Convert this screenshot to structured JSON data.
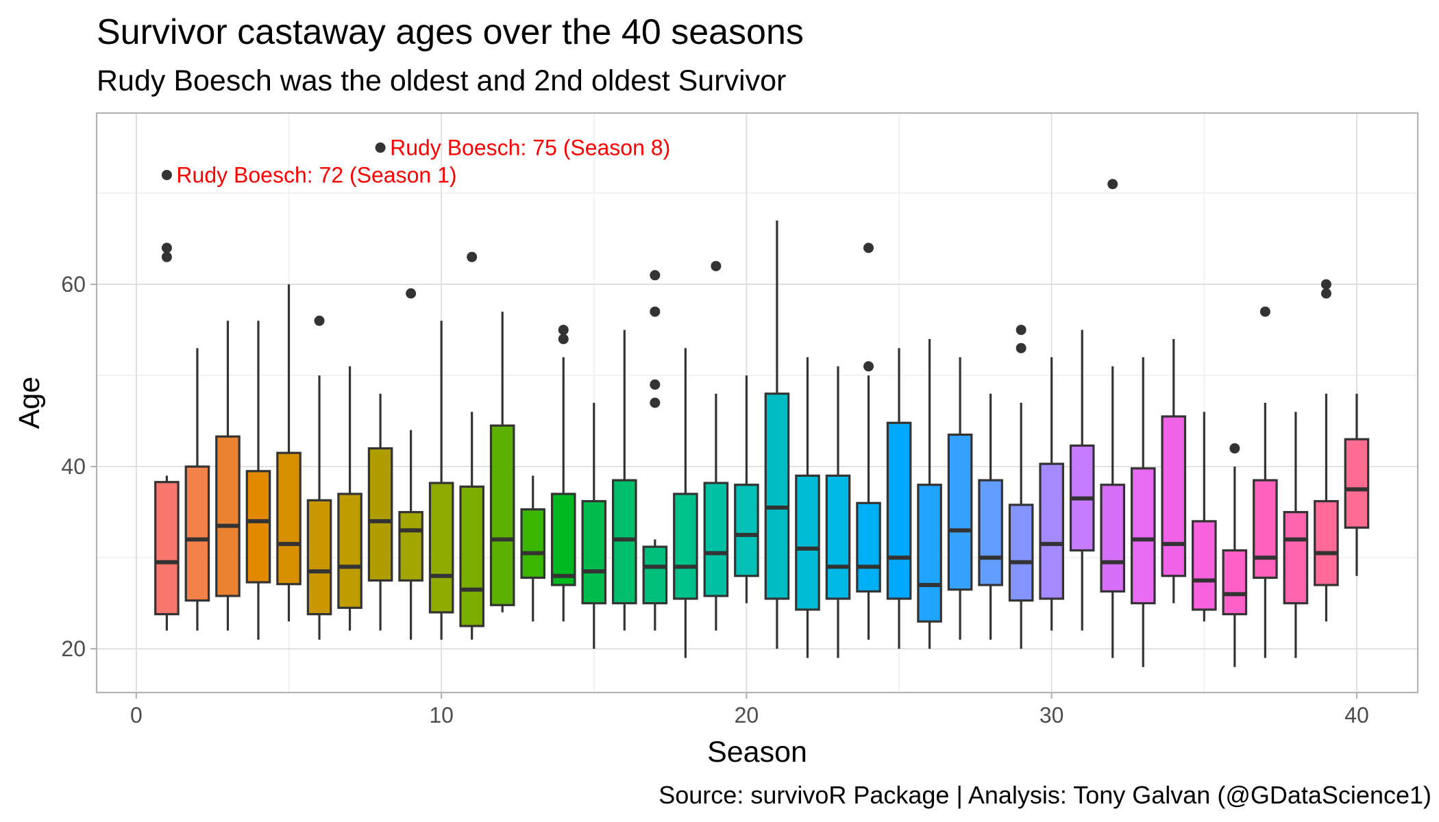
{
  "header": {
    "title": "Survivor castaway ages over the 40 seasons",
    "subtitle": "Rudy Boesch was the oldest and 2nd oldest Survivor"
  },
  "caption": "Source: survivoR Package  |  Analysis: Tony Galvan (@GDataScience1)",
  "chart_data": {
    "type": "boxplot",
    "xlabel": "Season",
    "ylabel": "Age",
    "xlim": [
      -1.3,
      42.0
    ],
    "ylim": [
      15.2,
      78.8
    ],
    "x_ticks": [
      0,
      10,
      20,
      30,
      40
    ],
    "y_ticks": [
      20,
      40,
      60
    ],
    "x_tick_labels": [
      "0",
      "10",
      "20",
      "30",
      "40"
    ],
    "y_tick_labels": [
      "20",
      "40",
      "60"
    ],
    "grid": true,
    "legend": "none",
    "colors": {
      "panel_border": "#b3b3b3",
      "grid_major": "#dddddd",
      "grid_minor": "#efefef",
      "box_line": "#333333",
      "annotation": "#ff0000"
    },
    "series": [
      {
        "season": 1,
        "min": 22,
        "q1": 23.8,
        "median": 29.5,
        "q3": 38.3,
        "max": 39,
        "outliers": [
          63,
          64,
          72
        ],
        "color": "#F8766D"
      },
      {
        "season": 2,
        "min": 22,
        "q1": 25.3,
        "median": 32,
        "q3": 40,
        "max": 53,
        "outliers": [],
        "color": "#F2814A"
      },
      {
        "season": 3,
        "min": 22,
        "q1": 25.8,
        "median": 33.5,
        "q3": 43.3,
        "max": 56,
        "outliers": [],
        "color": "#EA8331"
      },
      {
        "season": 4,
        "min": 21,
        "q1": 27.3,
        "median": 34,
        "q3": 39.5,
        "max": 56,
        "outliers": [],
        "color": "#E38900"
      },
      {
        "season": 5,
        "min": 23,
        "q1": 27.1,
        "median": 31.5,
        "q3": 41.5,
        "max": 60,
        "outliers": [],
        "color": "#D89000"
      },
      {
        "season": 6,
        "min": 21,
        "q1": 23.8,
        "median": 28.5,
        "q3": 36.3,
        "max": 50,
        "outliers": [
          56
        ],
        "color": "#CB9700"
      },
      {
        "season": 7,
        "min": 22,
        "q1": 24.5,
        "median": 29,
        "q3": 37,
        "max": 51,
        "outliers": [],
        "color": "#BF9C00"
      },
      {
        "season": 8,
        "min": 22,
        "q1": 27.5,
        "median": 34,
        "q3": 42,
        "max": 48,
        "outliers": [
          75
        ],
        "color": "#B09E00"
      },
      {
        "season": 9,
        "min": 21,
        "q1": 27.5,
        "median": 33,
        "q3": 35,
        "max": 44,
        "outliers": [
          59
        ],
        "color": "#A3A500"
      },
      {
        "season": 10,
        "min": 21,
        "q1": 24,
        "median": 28,
        "q3": 38.2,
        "max": 56,
        "outliers": [],
        "color": "#8FAA00"
      },
      {
        "season": 11,
        "min": 21,
        "q1": 22.5,
        "median": 26.5,
        "q3": 37.8,
        "max": 46,
        "outliers": [
          63
        ],
        "color": "#7CAE00"
      },
      {
        "season": 12,
        "min": 24,
        "q1": 24.8,
        "median": 32,
        "q3": 44.5,
        "max": 57,
        "outliers": [],
        "color": "#5DB100"
      },
      {
        "season": 13,
        "min": 23,
        "q1": 27.8,
        "median": 30.5,
        "q3": 35.3,
        "max": 39,
        "outliers": [],
        "color": "#39B600"
      },
      {
        "season": 14,
        "min": 23,
        "q1": 27,
        "median": 28,
        "q3": 37,
        "max": 52,
        "outliers": [
          54,
          55
        ],
        "color": "#00B81F"
      },
      {
        "season": 15,
        "min": 20,
        "q1": 25,
        "median": 28.5,
        "q3": 36.2,
        "max": 47,
        "outliers": [],
        "color": "#00BB4E"
      },
      {
        "season": 16,
        "min": 22,
        "q1": 25,
        "median": 32,
        "q3": 38.5,
        "max": 55,
        "outliers": [],
        "color": "#00BE6C"
      },
      {
        "season": 17,
        "min": 22,
        "q1": 25,
        "median": 29,
        "q3": 31.2,
        "max": 32,
        "outliers": [
          47,
          49,
          57,
          61
        ],
        "color": "#00BF7D"
      },
      {
        "season": 18,
        "min": 19,
        "q1": 25.5,
        "median": 29,
        "q3": 37,
        "max": 53,
        "outliers": [],
        "color": "#00C08B"
      },
      {
        "season": 19,
        "min": 22,
        "q1": 25.8,
        "median": 30.5,
        "q3": 38.2,
        "max": 48,
        "outliers": [
          62
        ],
        "color": "#00C1A3"
      },
      {
        "season": 20,
        "min": 25,
        "q1": 28,
        "median": 32.5,
        "q3": 38,
        "max": 50,
        "outliers": [],
        "color": "#00C0B7"
      },
      {
        "season": 21,
        "min": 20,
        "q1": 25.5,
        "median": 35.5,
        "q3": 48,
        "max": 67,
        "outliers": [],
        "color": "#00BDC4"
      },
      {
        "season": 22,
        "min": 19,
        "q1": 24.3,
        "median": 31,
        "q3": 39,
        "max": 52,
        "outliers": [],
        "color": "#00BBD4"
      },
      {
        "season": 23,
        "min": 19,
        "q1": 25.5,
        "median": 29,
        "q3": 39,
        "max": 51,
        "outliers": [],
        "color": "#00B8E5"
      },
      {
        "season": 24,
        "min": 21,
        "q1": 26.3,
        "median": 29,
        "q3": 36,
        "max": 50,
        "outliers": [
          51,
          64
        ],
        "color": "#00B0F6"
      },
      {
        "season": 25,
        "min": 20,
        "q1": 25.5,
        "median": 30,
        "q3": 44.8,
        "max": 53,
        "outliers": [],
        "color": "#00A9FF"
      },
      {
        "season": 26,
        "min": 20,
        "q1": 23,
        "median": 27,
        "q3": 38,
        "max": 54,
        "outliers": [],
        "color": "#1FA5FF"
      },
      {
        "season": 27,
        "min": 21,
        "q1": 26.5,
        "median": 33,
        "q3": 43.5,
        "max": 52,
        "outliers": [],
        "color": "#35A2FF"
      },
      {
        "season": 28,
        "min": 21,
        "q1": 27,
        "median": 30,
        "q3": 38.5,
        "max": 48,
        "outliers": [],
        "color": "#619CFF"
      },
      {
        "season": 29,
        "min": 20,
        "q1": 25.3,
        "median": 29.5,
        "q3": 35.8,
        "max": 47,
        "outliers": [
          53,
          55
        ],
        "color": "#8494FF"
      },
      {
        "season": 30,
        "min": 22,
        "q1": 25.5,
        "median": 31.5,
        "q3": 40.3,
        "max": 52,
        "outliers": [],
        "color": "#A58AFF"
      },
      {
        "season": 31,
        "min": 22,
        "q1": 30.8,
        "median": 36.5,
        "q3": 42.3,
        "max": 55,
        "outliers": [],
        "color": "#C77CFF"
      },
      {
        "season": 32,
        "min": 19,
        "q1": 26.3,
        "median": 29.5,
        "q3": 38,
        "max": 51,
        "outliers": [
          71
        ],
        "color": "#D870F7"
      },
      {
        "season": 33,
        "min": 18,
        "q1": 25,
        "median": 32,
        "q3": 39.8,
        "max": 52,
        "outliers": [],
        "color": "#E76BF3"
      },
      {
        "season": 34,
        "min": 25,
        "q1": 28,
        "median": 31.5,
        "q3": 45.5,
        "max": 54,
        "outliers": [],
        "color": "#F063E7"
      },
      {
        "season": 35,
        "min": 23,
        "q1": 24.3,
        "median": 27.5,
        "q3": 34,
        "max": 46,
        "outliers": [],
        "color": "#F962DD"
      },
      {
        "season": 36,
        "min": 18,
        "q1": 23.8,
        "median": 26,
        "q3": 30.8,
        "max": 40,
        "outliers": [
          42
        ],
        "color": "#FF61C9"
      },
      {
        "season": 37,
        "min": 19,
        "q1": 27.8,
        "median": 30,
        "q3": 38.5,
        "max": 47,
        "outliers": [
          57
        ],
        "color": "#FF62BC"
      },
      {
        "season": 38,
        "min": 19,
        "q1": 25,
        "median": 32,
        "q3": 35,
        "max": 46,
        "outliers": [],
        "color": "#FF65AE"
      },
      {
        "season": 39,
        "min": 23,
        "q1": 27,
        "median": 30.5,
        "q3": 36.2,
        "max": 48,
        "outliers": [
          59,
          60
        ],
        "color": "#FF6A98"
      },
      {
        "season": 40,
        "min": 28,
        "q1": 33.3,
        "median": 37.5,
        "q3": 43,
        "max": 48,
        "outliers": [],
        "color": "#FF6C91"
      }
    ],
    "annotations": [
      {
        "season": 8,
        "age": 75,
        "text": "Rudy Boesch: 75 (Season 8)"
      },
      {
        "season": 1,
        "age": 72,
        "text": "Rudy Boesch: 72 (Season 1)"
      }
    ]
  }
}
